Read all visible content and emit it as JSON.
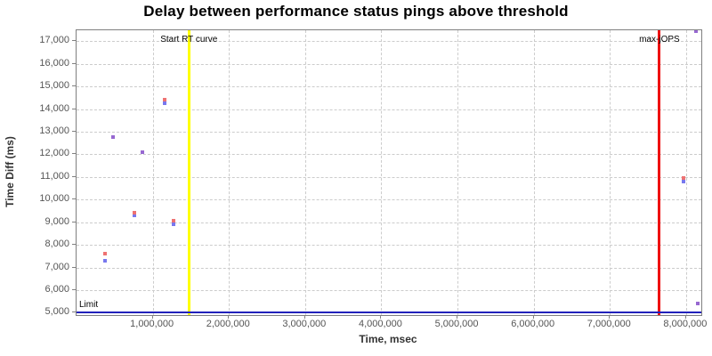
{
  "chart_data": {
    "type": "scatter",
    "title": "Delay between performance status pings above threshold",
    "xlabel": "Time, msec",
    "ylabel": "Time Diff (ms)",
    "xlim": [
      0,
      8200000
    ],
    "ylim": [
      4900,
      17480
    ],
    "x_ticks": [
      1000000,
      2000000,
      3000000,
      4000000,
      5000000,
      6000000,
      7000000,
      8000000
    ],
    "y_ticks": [
      5000,
      6000,
      7000,
      8000,
      9000,
      10000,
      11000,
      12000,
      13000,
      14000,
      15000,
      16000,
      17000
    ],
    "grid": true,
    "legend_position": "none",
    "colors": {
      "red_series": "#ee7272",
      "blue_series": "#7878ee",
      "overlap_series": "#9768d1",
      "limit_line": "#2222bb",
      "start_rt_line": "#ffff00",
      "max_jops_line": "#ee1111",
      "gridline": "#cccccc",
      "axis": "#808080",
      "tick_label": "#555555"
    },
    "vlines": [
      {
        "label": "Start RT curve",
        "x": 1475000,
        "color_key": "start_rt_line"
      },
      {
        "label": "max-jOPS",
        "x": 7650000,
        "color_key": "max_jops_line"
      }
    ],
    "hlines": [
      {
        "label": "Limit",
        "y": 5000,
        "color_key": "limit_line"
      }
    ],
    "points": [
      {
        "x": 370000,
        "red_y": 7600,
        "blue_y": 7300,
        "overlap": false
      },
      {
        "x": 475000,
        "red_y": 12750,
        "blue_y": 12750,
        "overlap": true
      },
      {
        "x": 755000,
        "red_y": 9420,
        "blue_y": 9300,
        "overlap": false
      },
      {
        "x": 870000,
        "red_y": 12100,
        "blue_y": 12100,
        "overlap": true
      },
      {
        "x": 1160000,
        "red_y": 14400,
        "blue_y": 14250,
        "overlap": false
      },
      {
        "x": 1270000,
        "red_y": 9050,
        "blue_y": 8900,
        "overlap": false
      },
      {
        "x": 7970000,
        "red_y": 10950,
        "blue_y": 10800,
        "overlap": false
      },
      {
        "x": 8130000,
        "red_y": 17430,
        "blue_y": 17430,
        "overlap": true
      },
      {
        "x": 8150000,
        "red_y": 5400,
        "blue_y": 5400,
        "overlap": true
      }
    ]
  }
}
